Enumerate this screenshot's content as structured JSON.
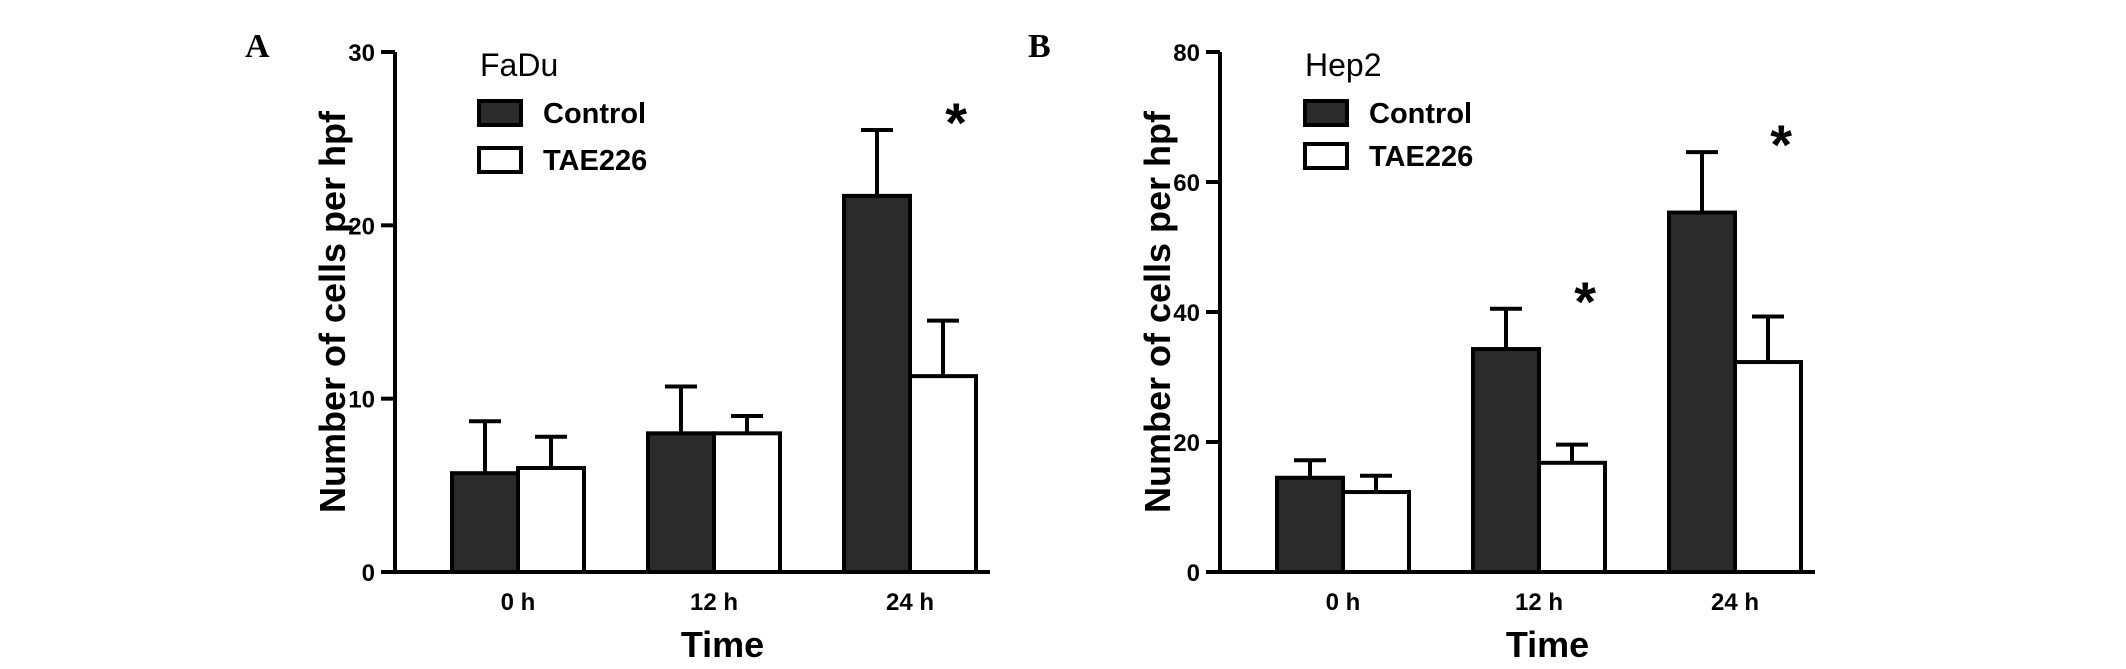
{
  "chart_data": [
    {
      "type": "bar",
      "panel_label": "A",
      "title": "FaDu",
      "xlabel": "Time",
      "ylabel": "Number of cells per hpf",
      "categories": [
        "0 h",
        "12 h",
        "24 h"
      ],
      "ylim": [
        0,
        30
      ],
      "yticks": [
        0,
        10,
        20,
        30
      ],
      "legend_position": "top-left",
      "series": [
        {
          "name": "Control",
          "values": [
            5.7,
            8.0,
            21.7
          ],
          "errors": [
            3.0,
            2.7,
            3.8
          ],
          "fill": "#2b2b2b"
        },
        {
          "name": "TAE226",
          "values": [
            6.0,
            8.0,
            11.3
          ],
          "errors": [
            1.8,
            1.0,
            3.2
          ],
          "fill": "#ffffff"
        }
      ],
      "annotations": [
        {
          "text": "*",
          "category": "24 h"
        }
      ]
    },
    {
      "type": "bar",
      "panel_label": "B",
      "title": "Hep2",
      "xlabel": "Time",
      "ylabel": "Number of cells per hpf",
      "categories": [
        "0 h",
        "12 h",
        "24 h"
      ],
      "ylim": [
        0,
        80
      ],
      "yticks": [
        0,
        20,
        40,
        60,
        80
      ],
      "legend_position": "top-left",
      "series": [
        {
          "name": "Control",
          "values": [
            14.5,
            34.3,
            55.3
          ],
          "errors": [
            2.7,
            6.2,
            9.3
          ],
          "fill": "#2b2b2b"
        },
        {
          "name": "TAE226",
          "values": [
            12.3,
            16.8,
            32.3
          ],
          "errors": [
            2.5,
            2.8,
            7.0
          ],
          "fill": "#ffffff"
        }
      ],
      "annotations": [
        {
          "text": "*",
          "category": "12 h"
        },
        {
          "text": "*",
          "category": "24 h"
        }
      ]
    }
  ]
}
